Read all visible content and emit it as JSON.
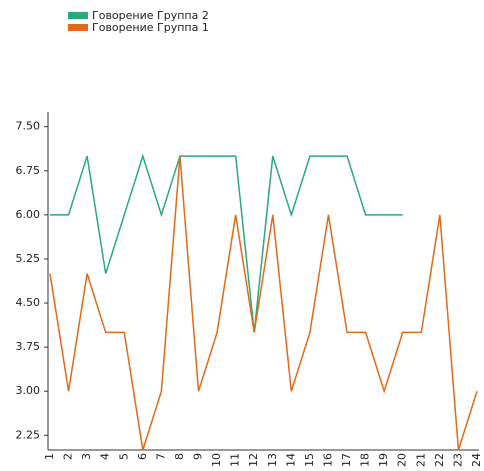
{
  "chart_data": {
    "type": "line",
    "categories": [
      "1",
      "2",
      "3",
      "4",
      "5",
      "6",
      "7",
      "8",
      "9",
      "10",
      "11",
      "12",
      "13",
      "14",
      "15",
      "16",
      "17",
      "18",
      "19",
      "20",
      "21",
      "22",
      "23",
      "24"
    ],
    "series": [
      {
        "name": "Говорение Группа 2",
        "color": "#2ca87f",
        "values": [
          6,
          6,
          7,
          5,
          6,
          7,
          6,
          7,
          7,
          7,
          7,
          4,
          7,
          6,
          7,
          7,
          7,
          6,
          6,
          6,
          null,
          null,
          null,
          null
        ]
      },
      {
        "name": "Говорение Группа 1",
        "color": "#e0691a",
        "values": [
          5,
          3,
          5,
          4,
          4,
          2,
          3,
          7,
          3,
          4,
          6,
          4,
          6,
          3,
          4,
          6,
          4,
          4,
          3,
          4,
          4,
          6,
          2,
          3
        ]
      }
    ],
    "ylim": [
      2,
      7.75
    ],
    "yticks": [
      {
        "value": 2.25,
        "label": "2.25"
      },
      {
        "value": 3,
        "label": "3.00"
      },
      {
        "value": 3.75,
        "label": "3.75"
      },
      {
        "value": 4.5,
        "label": "4.50"
      },
      {
        "value": 5.25,
        "label": "5.25"
      },
      {
        "value": 6,
        "label": "6.00"
      },
      {
        "value": 6.75,
        "label": "6.75"
      },
      {
        "value": 7.5,
        "label": "7.50"
      }
    ],
    "legend": "top-left"
  }
}
